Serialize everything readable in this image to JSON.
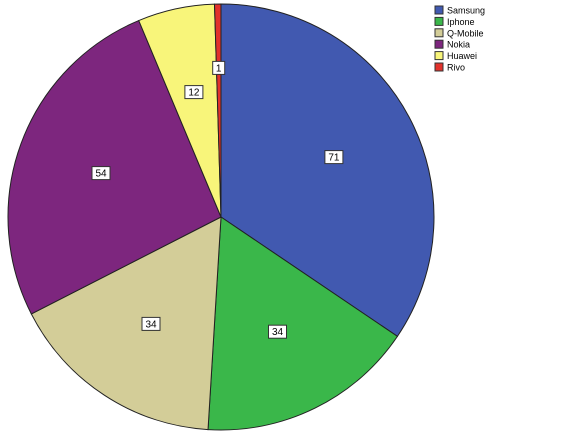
{
  "chart_data": {
    "type": "pie",
    "title": "",
    "start_angle_deg": 0,
    "direction": "clockwise",
    "legend_position": "top-right",
    "slices": [
      {
        "label": "Samsung",
        "value": 71,
        "value_label": "71",
        "color": "#4159B0"
      },
      {
        "label": "Iphone",
        "value": 34,
        "value_label": "34",
        "color": "#3AB74A"
      },
      {
        "label": "Q-Mobile",
        "value": 34,
        "value_label": "34",
        "color": "#D3CD98"
      },
      {
        "label": "Nokia",
        "value": 54,
        "value_label": "54",
        "color": "#7D267E"
      },
      {
        "label": "Huawei",
        "value": 12,
        "value_label": "12",
        "color": "#F8F57A"
      },
      {
        "label": "Rivo",
        "value": 1,
        "value_label": "1",
        "color": "#E2312B"
      }
    ]
  }
}
